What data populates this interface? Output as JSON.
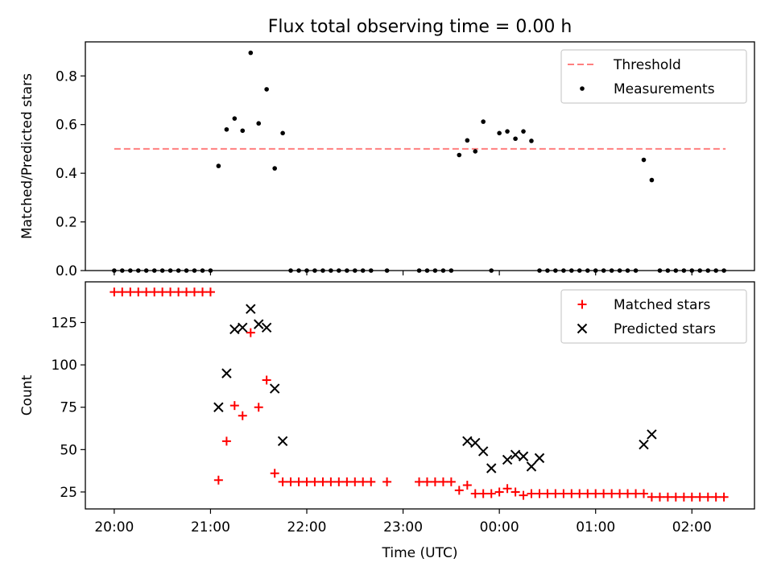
{
  "figure": {
    "title": "Flux total observing time = 0.00 h"
  },
  "chart_data": [
    {
      "type": "scatter",
      "title": "Flux total observing time = 0.00 h",
      "xlabel": "",
      "ylabel": "Matched/Predicted stars",
      "x_unit": "hours since 20:00 UTC",
      "xlim": [
        -0.3,
        6.65
      ],
      "ylim": [
        0,
        0.94
      ],
      "yticks": [
        0.0,
        0.2,
        0.4,
        0.6,
        0.8
      ],
      "ytick_labels": [
        "0.0",
        "0.2",
        "0.4",
        "0.6",
        "0.8"
      ],
      "grid": false,
      "legend_position": "top-right",
      "threshold": {
        "name": "Threshold",
        "color": "#ff7f7f",
        "style": "dashed",
        "x": [
          0,
          6.35
        ],
        "y": 0.5
      },
      "series": [
        {
          "name": "Measurements",
          "color": "#000000",
          "marker": "dot",
          "x": [
            0,
            0.083,
            0.167,
            0.25,
            0.333,
            0.417,
            0.5,
            0.583,
            0.667,
            0.75,
            0.833,
            0.917,
            1.0,
            1.083,
            1.167,
            1.25,
            1.333,
            1.417,
            1.5,
            1.583,
            1.667,
            1.75,
            1.833,
            1.917,
            2.0,
            2.083,
            2.167,
            2.25,
            2.333,
            2.417,
            2.5,
            2.583,
            2.667,
            2.833,
            3.167,
            3.25,
            3.333,
            3.417,
            3.5,
            3.583,
            3.667,
            3.75,
            3.833,
            3.917,
            4.0,
            4.083,
            4.167,
            4.25,
            4.333,
            4.417,
            4.5,
            4.583,
            4.667,
            4.75,
            4.833,
            4.917,
            5.0,
            5.083,
            5.167,
            5.25,
            5.333,
            5.417,
            5.5,
            5.583,
            5.667,
            5.75,
            5.833,
            5.917,
            6.0,
            6.083,
            6.167,
            6.25,
            6.333
          ],
          "y": [
            0,
            0,
            0,
            0,
            0,
            0,
            0,
            0,
            0,
            0,
            0,
            0,
            0,
            0.43,
            0.58,
            0.625,
            0.575,
            0.895,
            0.605,
            0.745,
            0.42,
            0.565,
            0,
            0,
            0,
            0,
            0,
            0,
            0,
            0,
            0,
            0,
            0,
            0,
            0,
            0,
            0,
            0,
            0,
            0.475,
            0.535,
            0.49,
            0.612,
            0,
            0.565,
            0.572,
            0.542,
            0.572,
            0.533,
            0,
            0,
            0,
            0,
            0,
            0,
            0,
            0,
            0,
            0,
            0,
            0,
            0,
            0.455,
            0.372,
            0,
            0,
            0,
            0,
            0,
            0,
            0,
            0,
            0
          ]
        }
      ]
    },
    {
      "type": "scatter",
      "title": "",
      "xlabel": "Time (UTC)",
      "ylabel": "Count",
      "x_unit": "hours since 20:00 UTC",
      "xlim": [
        -0.3,
        6.65
      ],
      "ylim": [
        15,
        149
      ],
      "yticks": [
        25,
        50,
        75,
        100,
        125
      ],
      "ytick_labels": [
        "25",
        "50",
        "75",
        "100",
        "125"
      ],
      "xticks": [
        0,
        1,
        2,
        3,
        4,
        5,
        6
      ],
      "xtick_labels": [
        "20:00",
        "21:00",
        "22:00",
        "23:00",
        "00:00",
        "01:00",
        "02:00"
      ],
      "grid": false,
      "legend_position": "top-right",
      "series": [
        {
          "name": "Matched stars",
          "color": "#ff0000",
          "marker": "plus",
          "x": [
            0,
            0.083,
            0.167,
            0.25,
            0.333,
            0.417,
            0.5,
            0.583,
            0.667,
            0.75,
            0.833,
            0.917,
            1.0,
            1.083,
            1.167,
            1.25,
            1.333,
            1.417,
            1.5,
            1.583,
            1.667,
            1.75,
            1.833,
            1.917,
            2.0,
            2.083,
            2.167,
            2.25,
            2.333,
            2.417,
            2.5,
            2.583,
            2.667,
            2.833,
            3.167,
            3.25,
            3.333,
            3.417,
            3.5,
            3.583,
            3.667,
            3.75,
            3.833,
            3.917,
            4.0,
            4.083,
            4.167,
            4.25,
            4.333,
            4.417,
            4.5,
            4.583,
            4.667,
            4.75,
            4.833,
            4.917,
            5.0,
            5.083,
            5.167,
            5.25,
            5.333,
            5.417,
            5.5,
            5.583,
            5.667,
            5.75,
            5.833,
            5.917,
            6.0,
            6.083,
            6.167,
            6.25,
            6.333
          ],
          "y": [
            143,
            143,
            143,
            143,
            143,
            143,
            143,
            143,
            143,
            143,
            143,
            143,
            143,
            32,
            55,
            76,
            70,
            119,
            75,
            91,
            36,
            31,
            31,
            31,
            31,
            31,
            31,
            31,
            31,
            31,
            31,
            31,
            31,
            31,
            31,
            31,
            31,
            31,
            31,
            26,
            29,
            24,
            24,
            24,
            25,
            27,
            25,
            23,
            24,
            24,
            24,
            24,
            24,
            24,
            24,
            24,
            24,
            24,
            24,
            24,
            24,
            24,
            24,
            22,
            22,
            22,
            22,
            22,
            22,
            22,
            22,
            22,
            22
          ]
        },
        {
          "name": "Predicted stars",
          "color": "#000000",
          "marker": "x",
          "x": [
            1.083,
            1.167,
            1.25,
            1.333,
            1.417,
            1.5,
            1.583,
            1.667,
            1.75,
            3.667,
            3.75,
            3.833,
            3.917,
            4.083,
            4.167,
            4.25,
            4.333,
            4.417,
            5.5,
            5.583
          ],
          "y": [
            75,
            95,
            121,
            122,
            133,
            124,
            122,
            86,
            55,
            55,
            54,
            49,
            39,
            44,
            47,
            46,
            40,
            45,
            53,
            59
          ]
        }
      ]
    }
  ]
}
